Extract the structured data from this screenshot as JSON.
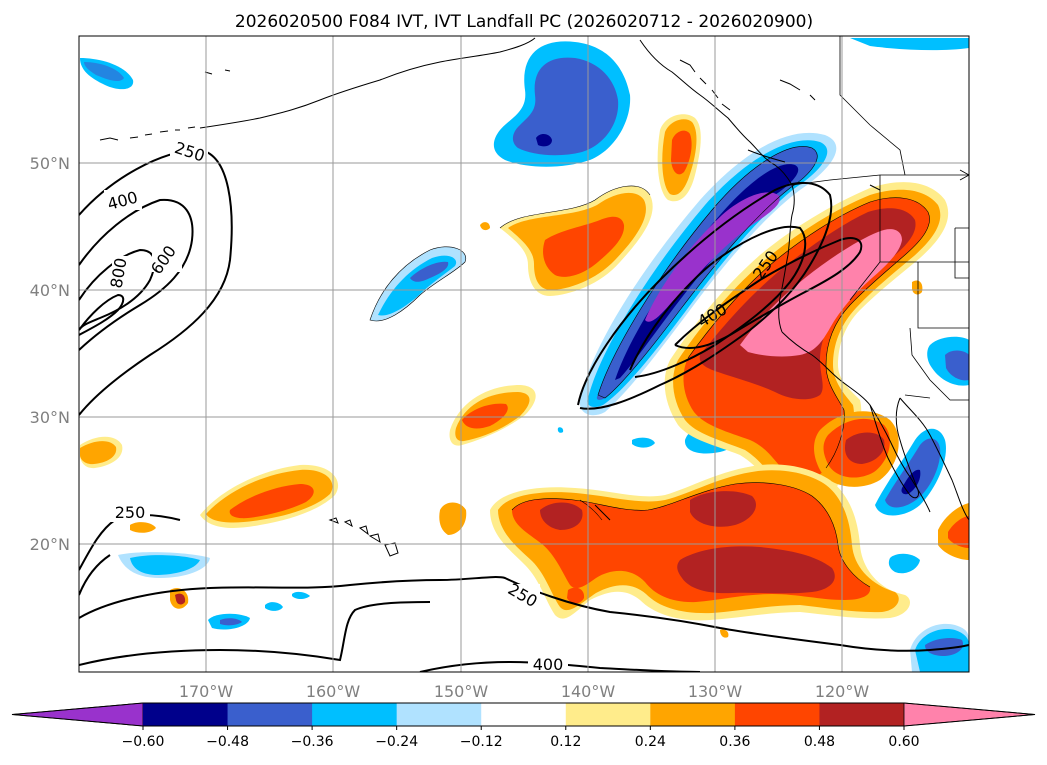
{
  "figure": {
    "title": "2026020500 F084 IVT, IVT Landfall PC (2026020712 - 2026020900)"
  },
  "map": {
    "lat_labels": [
      "50°N",
      "40°N",
      "30°N",
      "20°N"
    ],
    "lon_labels": [
      "170°W",
      "160°W",
      "150°W",
      "140°W",
      "130°W",
      "120°W"
    ],
    "gridlines": true
  },
  "ivt_contours": {
    "labels": [
      "250",
      "400",
      "600",
      "800",
      "250",
      "400",
      "250",
      "250",
      "400"
    ]
  },
  "colorbar": {
    "ticks": [
      "−0.60",
      "−0.48",
      "−0.36",
      "−0.24",
      "−0.12",
      "0.12",
      "0.24",
      "0.36",
      "0.48",
      "0.60"
    ],
    "colors": [
      "#9932cc",
      "#00008b",
      "#3a5fcd",
      "#00bfff",
      "#b0e2ff",
      "#ffffff",
      "#ffec8b",
      "#ffa500",
      "#ff4500",
      "#b22222",
      "#ff82ab"
    ],
    "extend": "both"
  }
}
